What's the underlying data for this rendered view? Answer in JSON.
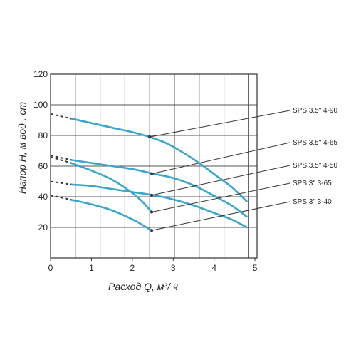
{
  "chart_data": {
    "type": "line",
    "xlabel": "Расход  Q,  м³/ ч",
    "ylabel": "Напор  H,  м вод . ст",
    "xlim": [
      0,
      5
    ],
    "ylim": [
      0,
      120
    ],
    "x_ticks": [
      "0",
      "1",
      "2",
      "3",
      "4",
      "5"
    ],
    "y_ticks": [
      "20",
      "40",
      "60",
      "80",
      "100",
      "120"
    ],
    "grid": true,
    "line_color": "#3aa6cc",
    "extrapolation_style": "dashed",
    "series": [
      {
        "name": "SPS 3.5\" 4-90",
        "x": [
          0.5,
          1.0,
          1.5,
          2.0,
          2.4,
          2.8,
          3.2,
          3.6,
          4.0,
          4.4,
          4.75
        ],
        "y": [
          91,
          88,
          85,
          82,
          79,
          75,
          69,
          62,
          54,
          46,
          37
        ],
        "extrapolation": {
          "x": [
            0.0,
            0.5
          ],
          "y": [
            94,
            91
          ]
        },
        "marker": {
          "x": 2.4,
          "y": 79
        }
      },
      {
        "name": "SPS 3.5\" 4-65",
        "x": [
          0.5,
          1.0,
          1.5,
          2.0,
          2.5,
          3.0,
          3.5,
          4.0,
          4.4,
          4.75
        ],
        "y": [
          64,
          62,
          60,
          58,
          55,
          52,
          47,
          40,
          34,
          27
        ],
        "extrapolation": {
          "x": [
            0.0,
            0.5
          ],
          "y": [
            67,
            64
          ]
        },
        "marker": {
          "x": 2.45,
          "y": 55
        }
      },
      {
        "name": "SPS 3.5\" 4-50",
        "x": [
          0.5,
          1.0,
          1.5,
          2.0,
          2.5,
          3.0,
          3.5,
          4.0,
          4.4,
          4.75
        ],
        "y": [
          48,
          47,
          45,
          43,
          41,
          38,
          34,
          29,
          25,
          20
        ],
        "extrapolation": {
          "x": [
            0.0,
            0.5
          ],
          "y": [
            50,
            48
          ]
        },
        "marker": {
          "x": 2.45,
          "y": 41
        }
      },
      {
        "name": "SPS 3\" 3-65",
        "x": [
          0.5,
          1.0,
          1.5,
          2.0,
          2.25,
          2.45
        ],
        "y": [
          62,
          57,
          51,
          42,
          36,
          30
        ],
        "extrapolation": {
          "x": [
            0.0,
            0.5
          ],
          "y": [
            66,
            62
          ]
        },
        "marker": {
          "x": 2.45,
          "y": 30
        }
      },
      {
        "name": "SPS 3\" 3-40",
        "x": [
          0.5,
          1.0,
          1.5,
          2.0,
          2.2,
          2.45
        ],
        "y": [
          38,
          35,
          31,
          25,
          22,
          18
        ],
        "extrapolation": {
          "x": [
            0.0,
            0.5
          ],
          "y": [
            41,
            38
          ]
        },
        "marker": {
          "x": 2.45,
          "y": 18
        }
      }
    ]
  }
}
